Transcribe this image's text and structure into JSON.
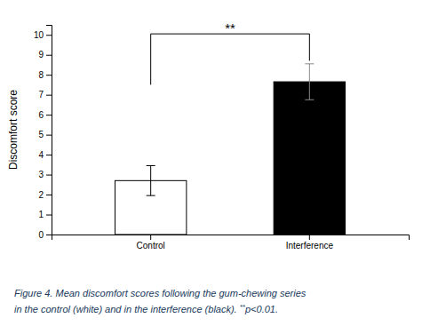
{
  "chart_data": {
    "type": "bar",
    "categories": [
      "Control",
      "Interference"
    ],
    "values": [
      2.7,
      7.65
    ],
    "errors": [
      0.75,
      0.9
    ],
    "colors": [
      "#ffffff",
      "#000000"
    ],
    "ylabel": "Discomfort score",
    "ylim": [
      0,
      10.5
    ],
    "yticks": [
      0,
      1,
      2,
      3,
      4,
      5,
      6,
      7,
      8,
      9,
      10
    ],
    "grid": false,
    "annotations": [
      {
        "text": "**",
        "y": 10.1,
        "from": "Control",
        "to": "Interference",
        "bracket_top": 10.05,
        "bracket_left_bottom": 7.5,
        "bracket_right_bottom": 8.7
      }
    ],
    "caption": {
      "line1": "Figure 4. Mean discomfort scores following the gum-chewing series",
      "line2": "in the control (white) and in the interference (black).",
      "superscript": "**",
      "end": "p<0.01.",
      "color": "#1a3a5c"
    }
  }
}
